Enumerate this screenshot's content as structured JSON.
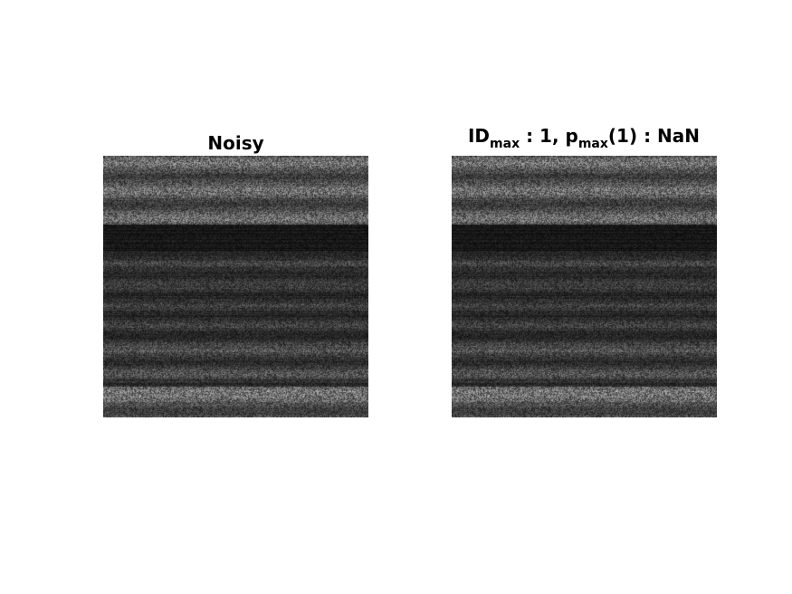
{
  "panels": [
    {
      "id": "noisy",
      "title": "Noisy"
    },
    {
      "id": "denoised",
      "title_parts": {
        "p1": "ID",
        "s1": "max",
        "p2": " : 1, p",
        "s2": "max",
        "p3": "(1) : NaN"
      }
    }
  ],
  "colors": {
    "background": "#ffffff",
    "title_text": "#000000"
  },
  "image": {
    "style": "grayscale horizontal noise bands",
    "dark_band_fraction": 0.31
  }
}
